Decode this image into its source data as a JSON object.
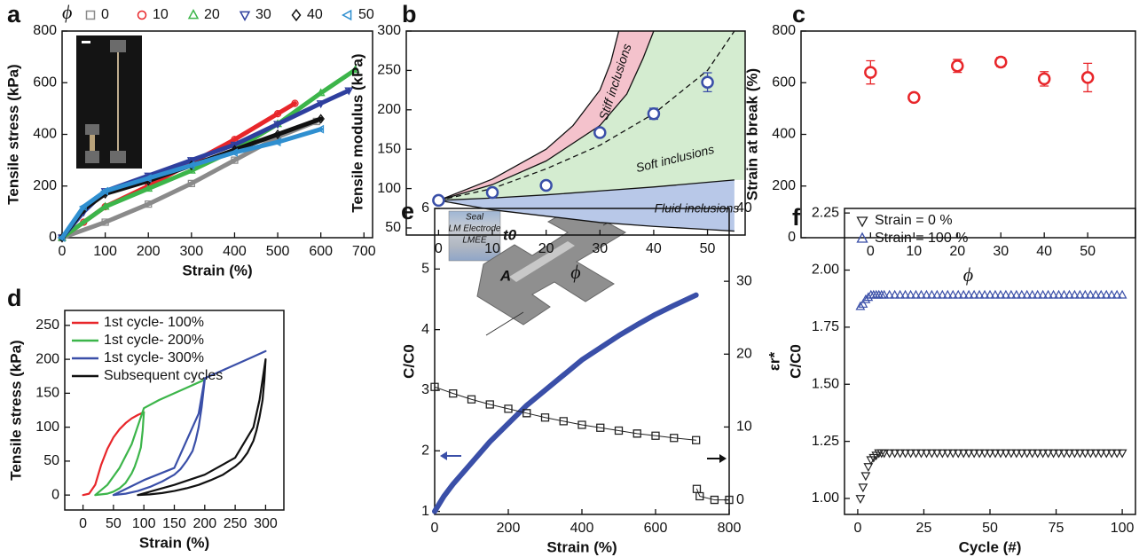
{
  "chart_data": [
    {
      "type": "line",
      "label": "a",
      "xlabel": "Strain (%)",
      "ylabel": "Tensile stress (kPa)",
      "xlim": [
        0,
        720
      ],
      "xticks": [
        0,
        100,
        200,
        300,
        400,
        500,
        600,
        700
      ],
      "ylim": [
        0,
        800
      ],
      "yticks": [
        0,
        200,
        400,
        600,
        800
      ],
      "legend": "top",
      "legend_title": "ϕ",
      "series": [
        {
          "name": "0",
          "color": "#8a8a8a",
          "marker": "square",
          "x": [
            0,
            100,
            200,
            300,
            400,
            500,
            590
          ],
          "values": [
            0,
            60,
            130,
            210,
            300,
            390,
            450
          ]
        },
        {
          "name": "10",
          "color": "#e8262a",
          "marker": "circle",
          "x": [
            0,
            50,
            100,
            200,
            300,
            400,
            500,
            540
          ],
          "values": [
            0,
            60,
            120,
            200,
            290,
            380,
            480,
            520
          ]
        },
        {
          "name": "20",
          "color": "#3cb54a",
          "marker": "triangle-up",
          "x": [
            0,
            100,
            200,
            300,
            400,
            500,
            600,
            680
          ],
          "values": [
            0,
            120,
            190,
            260,
            340,
            440,
            560,
            650
          ]
        },
        {
          "name": "30",
          "color": "#2e3f9e",
          "marker": "triangle-down",
          "x": [
            0,
            50,
            100,
            200,
            300,
            400,
            500,
            600,
            665
          ],
          "values": [
            0,
            100,
            180,
            240,
            300,
            360,
            440,
            520,
            570
          ]
        },
        {
          "name": "40",
          "color": "#111111",
          "marker": "diamond",
          "x": [
            0,
            50,
            100,
            200,
            300,
            400,
            500,
            600
          ],
          "values": [
            0,
            110,
            170,
            220,
            280,
            340,
            400,
            460
          ]
        },
        {
          "name": "50",
          "color": "#2f8fd0",
          "marker": "triangle-left",
          "x": [
            0,
            50,
            100,
            200,
            300,
            400,
            500,
            600
          ],
          "values": [
            0,
            120,
            180,
            230,
            280,
            330,
            370,
            420
          ]
        }
      ]
    },
    {
      "type": "scatter",
      "label": "b",
      "xlabel": "ϕ",
      "ylabel": "Tensile modulus (kPa)",
      "xlim": [
        -6,
        57
      ],
      "xticks": [
        0,
        10,
        20,
        30,
        40,
        50
      ],
      "ylim": [
        41,
        300
      ],
      "yticks": [
        50,
        100,
        150,
        200,
        250,
        300
      ],
      "x": [
        0,
        10,
        20,
        30,
        40,
        50
      ],
      "series": [
        {
          "color": "#3a4fa8",
          "marker": "circle",
          "values": [
            85,
            95,
            104,
            171,
            195,
            235
          ],
          "errors": [
            2,
            3,
            3,
            3,
            7,
            12
          ]
        }
      ],
      "regions": [
        {
          "label": "Stiff inclusions",
          "color": "#f4c2cc"
        },
        {
          "label": "Soft inclusions",
          "color": "#d4ecd0"
        },
        {
          "label": "Fluid inclusions",
          "color": "#b8c8e8"
        }
      ],
      "curves": [
        {
          "dashed": false,
          "x": [
            0,
            10,
            20,
            25,
            30,
            32,
            33.5
          ],
          "values": [
            85,
            112,
            150,
            180,
            225,
            260,
            300
          ]
        },
        {
          "dashed": false,
          "x": [
            0,
            10,
            20,
            30,
            35,
            38,
            40
          ],
          "values": [
            85,
            105,
            135,
            180,
            220,
            265,
            300
          ]
        },
        {
          "dashed": true,
          "x": [
            0,
            10,
            20,
            30,
            40,
            50,
            55
          ],
          "values": [
            85,
            100,
            125,
            155,
            195,
            250,
            300
          ]
        },
        {
          "dashed": false,
          "x": [
            0,
            10,
            20,
            30,
            40,
            50,
            55
          ],
          "values": [
            85,
            88,
            92,
            97,
            102,
            108,
            111
          ]
        },
        {
          "dashed": false,
          "x": [
            0,
            10,
            20,
            30,
            40,
            50,
            55
          ],
          "values": [
            85,
            73,
            65,
            57,
            52,
            48,
            46
          ]
        }
      ]
    },
    {
      "type": "scatter",
      "label": "c",
      "xlabel": "ϕ",
      "ylabel": "Strain at break (%)",
      "xlim": [
        -16,
        61
      ],
      "xticks": [
        0,
        10,
        20,
        30,
        40,
        50
      ],
      "ylim": [
        0,
        800
      ],
      "yticks": [
        0,
        200,
        400,
        600,
        800
      ],
      "x": [
        0,
        10,
        20,
        30,
        40,
        50
      ],
      "series": [
        {
          "color": "#e8262a",
          "marker": "circle",
          "values": [
            640,
            543,
            665,
            680,
            615,
            620
          ],
          "errors": [
            45,
            10,
            25,
            18,
            28,
            55
          ]
        }
      ]
    },
    {
      "type": "line",
      "label": "d",
      "xlabel": "Strain (%)",
      "ylabel": "Tensile stress (kPa)",
      "xlim": [
        -30,
        330
      ],
      "xticks": [
        0,
        50,
        100,
        150,
        200,
        250,
        300
      ],
      "ylim": [
        -22,
        272
      ],
      "yticks": [
        0,
        50,
        100,
        150,
        200,
        250
      ],
      "legend": "upper-left",
      "series": [
        {
          "name": "1st cycle- 100%",
          "color": "#e8262a",
          "x": [
            0,
            10,
            20,
            25,
            30,
            40,
            50,
            60,
            70,
            80,
            90,
            100
          ],
          "values": [
            0,
            2,
            15,
            30,
            45,
            68,
            85,
            97,
            106,
            113,
            118,
            122
          ]
        },
        {
          "name": "1st cycle- 200%",
          "color": "#3cb54a",
          "x": [
            100,
            98,
            95,
            90,
            85,
            80,
            70,
            60,
            50,
            40,
            30,
            20,
            40,
            60,
            80,
            100,
            125,
            150,
            175,
            200
          ],
          "values": [
            122,
            95,
            70,
            55,
            42,
            32,
            18,
            10,
            5,
            2,
            1,
            0,
            15,
            40,
            75,
            128,
            140,
            150,
            160,
            170
          ]
        },
        {
          "name": "1st cycle- 300%",
          "color": "#3a4fa8",
          "x": [
            200,
            195,
            190,
            185,
            180,
            170,
            160,
            150,
            130,
            110,
            90,
            70,
            50,
            100,
            150,
            190,
            200,
            225,
            250,
            275,
            300
          ],
          "values": [
            170,
            130,
            100,
            80,
            65,
            50,
            38,
            30,
            20,
            12,
            6,
            2,
            0,
            22,
            40,
            120,
            172,
            182,
            192,
            202,
            212
          ]
        },
        {
          "name": "Subsequent cycles",
          "color": "#111111",
          "x": [
            300,
            298,
            295,
            290,
            285,
            280,
            270,
            260,
            250,
            230,
            210,
            190,
            170,
            150,
            130,
            110,
            90,
            150,
            200,
            250,
            280,
            290,
            300
          ],
          "values": [
            200,
            170,
            140,
            115,
            95,
            80,
            62,
            50,
            42,
            30,
            22,
            15,
            10,
            6,
            3,
            1,
            0,
            15,
            30,
            55,
            100,
            140,
            200
          ]
        }
      ]
    },
    {
      "type": "line",
      "label": "e",
      "xlabel": "Strain (%)",
      "ylabel": "C/C0",
      "y2label": "εr*",
      "xlim": [
        0,
        800
      ],
      "xticks": [
        0,
        200,
        400,
        600,
        800
      ],
      "ylim": [
        0.95,
        6
      ],
      "yticks": [
        1,
        2,
        3,
        4,
        5,
        6
      ],
      "y2lim": [
        -2,
        40
      ],
      "y2ticks": [
        0,
        10,
        20,
        30,
        40
      ],
      "annotations": [
        "Seal",
        "LM Electrode",
        "LMEE",
        "t0",
        "A"
      ],
      "series": [
        {
          "color": "#3a4fa8",
          "x": [
            0,
            25,
            50,
            100,
            150,
            200,
            250,
            300,
            350,
            400,
            450,
            500,
            550,
            600,
            650,
            710
          ],
          "values": [
            1.0,
            1.25,
            1.45,
            1.8,
            2.15,
            2.45,
            2.75,
            3.0,
            3.25,
            3.5,
            3.7,
            3.9,
            4.08,
            4.25,
            4.4,
            4.57
          ]
        },
        {
          "color": "#222222",
          "marker": "square",
          "axis": "y2",
          "x": [
            0,
            50,
            100,
            150,
            200,
            250,
            300,
            350,
            400,
            450,
            500,
            550,
            600,
            650,
            710,
            711,
            712,
            720,
            760,
            800
          ],
          "values": [
            15.5,
            14.6,
            13.8,
            13.1,
            12.5,
            11.9,
            11.3,
            10.8,
            10.3,
            9.9,
            9.5,
            9.1,
            8.8,
            8.5,
            8.2,
            null,
            1.5,
            0.5,
            0,
            0
          ]
        }
      ]
    },
    {
      "type": "scatter",
      "label": "f",
      "xlabel": "Cycle (#)",
      "ylabel": "C/C0",
      "xlim": [
        -5,
        105
      ],
      "xticks": [
        0,
        25,
        50,
        75,
        100
      ],
      "ylim": [
        0.93,
        2.27
      ],
      "yticks": [
        {
          "value": 1,
          "label": "1.00"
        },
        {
          "value": 1.25,
          "label": "1.25"
        },
        {
          "value": 1.5,
          "label": "1.50"
        },
        {
          "value": 1.75,
          "label": "1.75"
        },
        {
          "value": 2,
          "label": "2.00"
        },
        {
          "value": 2.25,
          "label": "2.25"
        }
      ],
      "legend": "upper-left",
      "x": [
        1,
        2,
        3,
        4,
        5,
        6,
        7,
        8,
        9,
        10,
        12,
        14,
        16,
        18,
        20,
        22,
        24,
        26,
        28,
        30,
        32,
        34,
        36,
        38,
        40,
        42,
        44,
        46,
        48,
        50,
        52,
        54,
        56,
        58,
        60,
        62,
        64,
        66,
        68,
        70,
        72,
        74,
        76,
        78,
        80,
        82,
        84,
        86,
        88,
        90,
        92,
        94,
        96,
        98,
        100
      ],
      "series": [
        {
          "name": "Strain = 0 %",
          "color": "#222222",
          "marker": "triangle-down",
          "values": [
            1.0,
            1.05,
            1.1,
            1.14,
            1.17,
            1.18,
            1.19,
            1.2,
            1.2,
            1.2,
            1.2,
            1.2,
            1.2,
            1.2,
            1.2,
            1.2,
            1.2,
            1.2,
            1.2,
            1.2,
            1.2,
            1.2,
            1.2,
            1.2,
            1.2,
            1.2,
            1.2,
            1.2,
            1.2,
            1.2,
            1.2,
            1.2,
            1.2,
            1.2,
            1.2,
            1.2,
            1.2,
            1.2,
            1.2,
            1.2,
            1.2,
            1.2,
            1.2,
            1.2,
            1.2,
            1.2,
            1.2,
            1.2,
            1.2,
            1.2,
            1.2,
            1.2,
            1.2,
            1.2,
            1.2
          ]
        },
        {
          "name": "Strain = 100 %",
          "color": "#3a4fa8",
          "marker": "triangle-up",
          "values": [
            1.84,
            1.85,
            1.87,
            1.88,
            1.89,
            1.89,
            1.89,
            1.89,
            1.89,
            1.89,
            1.89,
            1.89,
            1.89,
            1.89,
            1.89,
            1.89,
            1.89,
            1.89,
            1.89,
            1.89,
            1.89,
            1.89,
            1.89,
            1.89,
            1.89,
            1.89,
            1.89,
            1.89,
            1.89,
            1.89,
            1.89,
            1.89,
            1.89,
            1.89,
            1.89,
            1.89,
            1.89,
            1.89,
            1.89,
            1.89,
            1.89,
            1.89,
            1.89,
            1.89,
            1.89,
            1.89,
            1.89,
            1.89,
            1.89,
            1.89,
            1.89,
            1.89,
            1.89,
            1.89,
            1.89
          ]
        }
      ]
    }
  ]
}
